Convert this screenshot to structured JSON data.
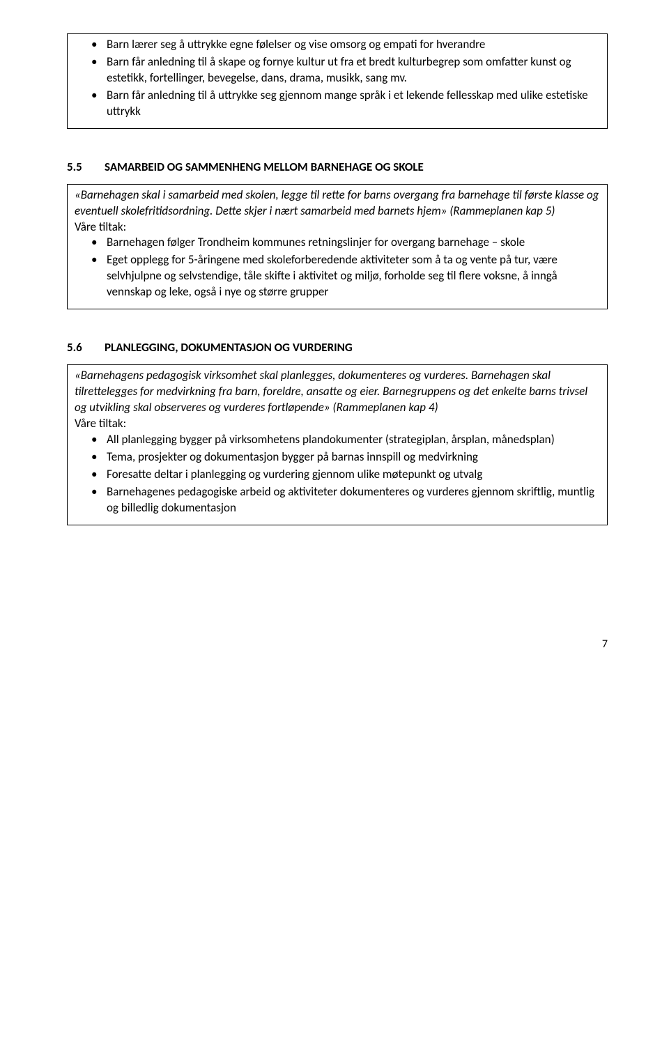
{
  "box1": {
    "items": [
      "Barn lærer seg å uttrykke egne følelser og vise omsorg og empati for hverandre",
      "Barn får anledning til å skape og fornye kultur ut fra et bredt kulturbegrep som omfatter kunst og estetikk, fortellinger, bevegelse, dans, drama, musikk, sang mv.",
      "Barn får anledning til å uttrykke seg gjennom mange språk i et lekende fellesskap med ulike estetiske uttrykk"
    ]
  },
  "section55": {
    "num": "5.5",
    "title": "SAMARBEID OG SAMMENHENG MELLOM BARNEHAGE OG SKOLE"
  },
  "box2": {
    "intro": "«Barnehagen skal i samarbeid med skolen, legge til rette for barns overgang fra barnehage til første klasse og eventuell skolefritidsordning. Dette skjer i nært samarbeid med barnets hjem» (Rammeplanen kap 5)",
    "tiltakLabel": "Våre tiltak:",
    "items": [
      "Barnehagen følger Trondheim kommunes retningslinjer for overgang barnehage – skole",
      "Eget opplegg for 5-åringene med skoleforberedende aktiviteter som å ta og vente på tur, være selvhjulpne og selvstendige, tåle skifte i aktivitet og miljø, forholde seg til flere voksne, å inngå vennskap og leke, også i nye og større grupper"
    ]
  },
  "section56": {
    "num": "5.6",
    "title": "PLANLEGGING, DOKUMENTASJON OG VURDERING"
  },
  "box3": {
    "intro": "«Barnehagens pedagogisk virksomhet skal planlegges, dokumenteres og vurderes. Barnehagen skal tilrettelegges for medvirkning fra barn, foreldre, ansatte og eier. Barnegruppens og det enkelte barns trivsel og utvikling skal observeres og vurderes fortløpende» (Rammeplanen kap 4)",
    "tiltakLabel": "Våre tiltak:",
    "items": [
      "All planlegging bygger på virksomhetens plandokumenter (strategiplan, årsplan, månedsplan)",
      "Tema, prosjekter og dokumentasjon bygger på barnas innspill og medvirkning",
      "Foresatte deltar i planlegging og vurdering gjennom ulike møtepunkt og utvalg",
      "Barnehagenes pedagogiske arbeid og aktiviteter dokumenteres og vurderes gjennom skriftlig, muntlig og billedlig dokumentasjon"
    ]
  },
  "pageNumber": "7"
}
